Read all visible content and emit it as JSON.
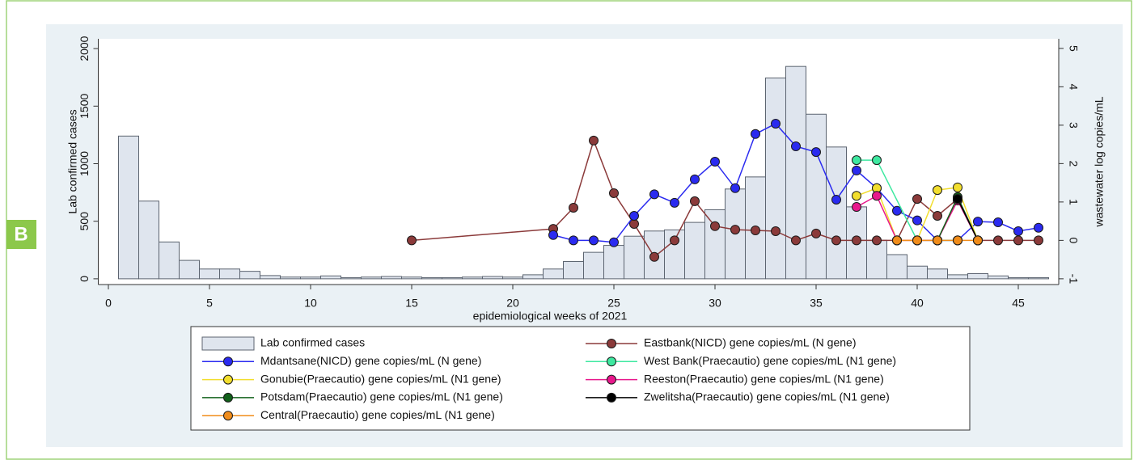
{
  "chart_data": {
    "type": "combo",
    "panel_label": "B",
    "xlabel": "epidemiological weeks of 2021",
    "ylabel": "Lab confirmed cases",
    "y2label": "wastewater log copies/mL",
    "xlim": [
      -0.5,
      47
    ],
    "xticks": [
      0,
      5,
      10,
      15,
      20,
      25,
      30,
      35,
      40,
      45
    ],
    "ylim": [
      -50,
      2085
    ],
    "yticks": [
      0,
      500,
      1000,
      1500,
      2000
    ],
    "y2lim": [
      -1.15,
      5.25
    ],
    "y2ticks": [
      -1,
      0,
      1,
      2,
      3,
      4,
      5
    ],
    "grid": false,
    "legend": "bottom",
    "series": [
      {
        "name": "Lab confirmed cases",
        "type": "bar",
        "color": "#dfe5ee",
        "x": [
          1,
          2,
          3,
          4,
          5,
          6,
          7,
          8,
          9,
          10,
          11,
          12,
          13,
          14,
          15,
          16,
          17,
          18,
          19,
          20,
          21,
          22,
          23,
          24,
          25,
          26,
          27,
          28,
          29,
          30,
          31,
          32,
          33,
          34,
          35,
          36,
          37,
          38,
          39,
          40,
          41,
          42,
          43,
          44,
          45,
          46
        ],
        "values": [
          1240,
          675,
          320,
          160,
          85,
          85,
          65,
          28,
          15,
          15,
          25,
          10,
          15,
          20,
          15,
          10,
          10,
          15,
          20,
          15,
          35,
          85,
          150,
          230,
          290,
          370,
          415,
          425,
          490,
          600,
          780,
          885,
          1745,
          1845,
          1430,
          1145,
          625,
          335,
          210,
          110,
          85,
          35,
          45,
          25,
          10,
          10
        ]
      },
      {
        "name": "Eastbank(NICD) gene copies/mL (N gene)",
        "type": "line",
        "axis": "y2",
        "color": "#8b3a3a",
        "x": [
          15,
          22,
          23,
          24,
          25,
          26,
          27,
          28,
          29,
          30,
          31,
          32,
          33,
          34,
          35,
          36,
          37,
          38,
          39,
          40,
          41,
          42,
          43,
          44,
          45,
          46
        ],
        "values": [
          0,
          0.3,
          0.85,
          2.6,
          1.23,
          0.43,
          -0.43,
          0,
          1.02,
          0.37,
          0.28,
          0.26,
          0.24,
          0,
          0.18,
          0,
          0,
          0,
          0,
          1.08,
          0.64,
          1.08,
          0,
          0,
          0,
          0
        ]
      },
      {
        "name": "Mdantsane(NICD) gene copies/mL (N gene)",
        "type": "line",
        "axis": "y2",
        "color": "#2a2af0",
        "x": [
          22,
          23,
          24,
          25,
          26,
          27,
          28,
          29,
          30,
          31,
          32,
          33,
          34,
          35,
          36,
          37,
          38,
          39,
          40,
          41,
          42,
          43,
          44,
          45,
          46
        ],
        "values": [
          0.14,
          0,
          0,
          -0.05,
          0.64,
          1.2,
          0.98,
          1.59,
          2.05,
          1.36,
          2.77,
          3.04,
          2.45,
          2.3,
          1.06,
          1.82,
          1.36,
          0.77,
          0.52,
          0,
          0,
          0.49,
          0.47,
          0.24,
          0.33
        ]
      },
      {
        "name": "West Bank(Praecautio) gene copies/mL (N1 gene)",
        "type": "line",
        "axis": "y2",
        "color": "#3ee8a0",
        "x": [
          37,
          38,
          40,
          41,
          42
        ],
        "values": [
          2.09,
          2.09,
          0,
          0,
          0
        ]
      },
      {
        "name": "Gonubie(Praecautio) gene copies/mL (N1 gene)",
        "type": "line",
        "axis": "y2",
        "color": "#f2de2e",
        "x": [
          37,
          38,
          39,
          40,
          41,
          42,
          43
        ],
        "values": [
          1.16,
          1.36,
          0,
          0,
          1.31,
          1.38,
          0
        ]
      },
      {
        "name": "Reeston(Praecautio) gene copies/mL (N1 gene)",
        "type": "line",
        "axis": "y2",
        "color": "#e8188c",
        "x": [
          37,
          38,
          39,
          40,
          41,
          42,
          43
        ],
        "values": [
          0.87,
          1.16,
          0,
          0,
          0,
          1.04,
          0
        ]
      },
      {
        "name": "Potsdam(Praecautio) gene copies/mL (N1 gene)",
        "type": "line",
        "axis": "y2",
        "color": "#11601a",
        "x": [
          41,
          42,
          43
        ],
        "values": [
          0,
          1.13,
          0
        ]
      },
      {
        "name": "Zwelitsha(Praecautio) gene copies/mL (N1 gene)",
        "type": "line",
        "axis": "y2",
        "color": "#000000",
        "x": [
          42,
          43
        ],
        "values": [
          1.08,
          0
        ]
      },
      {
        "name": "Central(Praecautio) gene copies/mL (N1 gene)",
        "type": "line",
        "axis": "y2",
        "color": "#f08c1a",
        "x": [
          39,
          40,
          41,
          42,
          43
        ],
        "values": [
          0,
          0,
          0,
          0,
          0
        ]
      }
    ]
  }
}
